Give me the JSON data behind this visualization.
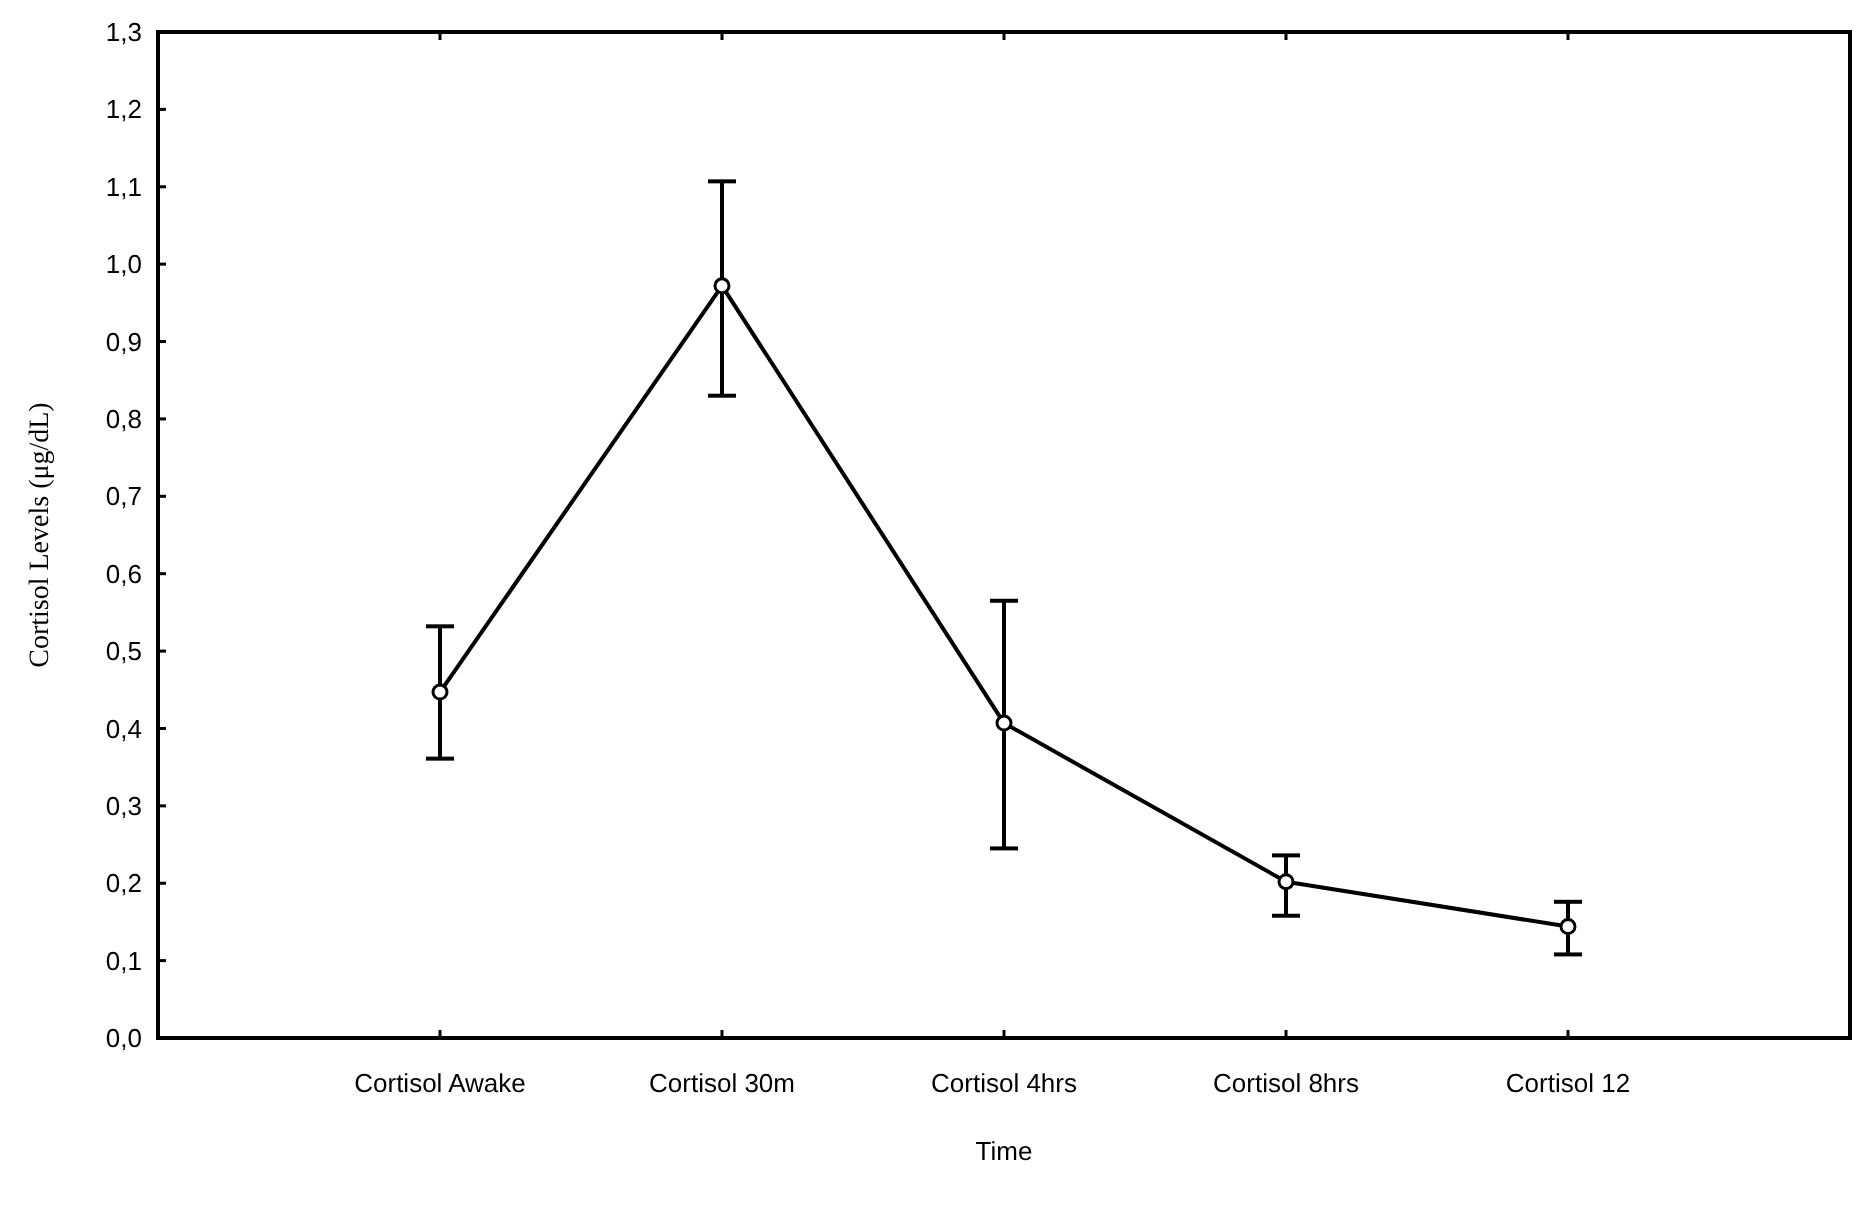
{
  "chart_data": {
    "type": "line",
    "xlabel": "Time",
    "ylabel": "Cortisol Levels (μg/dL)",
    "categories": [
      "Cortisol Awake",
      "Cortisol 30m",
      "Cortisol 4hrs",
      "Cortisol 8hrs",
      "Cortisol 12"
    ],
    "series": [
      {
        "color": "#000000",
        "values": [
          0.447,
          0.972,
          0.407,
          0.202,
          0.144
        ],
        "errors": [
          [
            0.361,
            0.532
          ],
          [
            0.83,
            1.107
          ],
          [
            0.245,
            0.565
          ],
          [
            0.158,
            0.236
          ],
          [
            0.108,
            0.176
          ]
        ]
      }
    ],
    "ylim": [
      0,
      1.3
    ],
    "yticks": [
      {
        "value": 0,
        "label": "0,0"
      },
      {
        "value": 0.1,
        "label": "0,1"
      },
      {
        "value": 0.2,
        "label": "0,2"
      },
      {
        "value": 0.3,
        "label": "0,3"
      },
      {
        "value": 0.4,
        "label": "0,4"
      },
      {
        "value": 0.5,
        "label": "0,5"
      },
      {
        "value": 0.6,
        "label": "0,6"
      },
      {
        "value": 0.7,
        "label": "0,7"
      },
      {
        "value": 0.8,
        "label": "0,8"
      },
      {
        "value": 0.9,
        "label": "0,9"
      },
      {
        "value": 1,
        "label": "1,0"
      },
      {
        "value": 1.1,
        "label": "1,1"
      },
      {
        "value": 1.2,
        "label": "1,2"
      },
      {
        "value": 1.3,
        "label": "1,3"
      }
    ],
    "grid": false,
    "marker": "circle",
    "line_style": "solid"
  }
}
